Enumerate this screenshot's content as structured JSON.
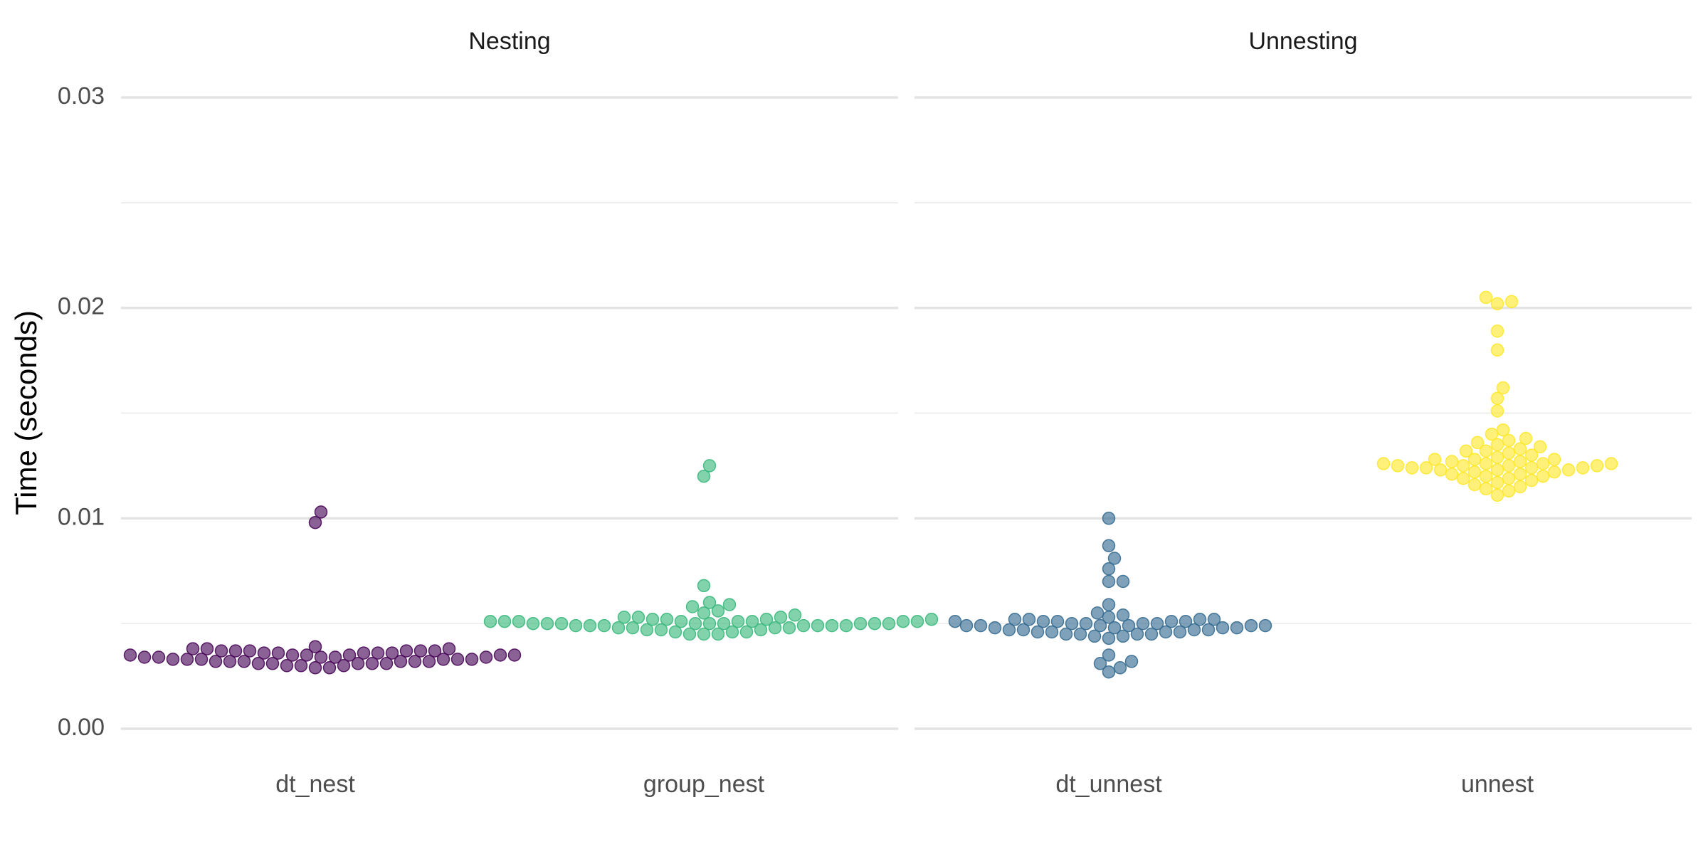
{
  "chart_data": {
    "type": "scatter",
    "subtype": "beeswarm",
    "ylabel": "Time (seconds)",
    "ylim": [
      0,
      0.03
    ],
    "y_ticks": [
      "0.00",
      "0.01",
      "0.02",
      "0.03"
    ],
    "y_tick_values": [
      0,
      0.01,
      0.02,
      0.03
    ],
    "y_minor_values": [
      0.005,
      0.015,
      0.025
    ],
    "grid": true,
    "legend": "none",
    "panels": [
      {
        "title": "Nesting",
        "categories": [
          "dt_nest",
          "group_nest"
        ],
        "series": [
          {
            "name": "dt_nest",
            "color": "#440154",
            "values": [
              0.0037,
              0.0037,
              0.0036,
              0.0036,
              0.0035,
              0.0035,
              0.0035,
              0.0034,
              0.0034,
              0.0034,
              0.0033,
              0.0033,
              0.0033,
              0.0032,
              0.0032,
              0.0032,
              0.0031,
              0.0031,
              0.0031,
              0.003,
              0.003,
              0.003,
              0.0029,
              0.0029,
              0.0037,
              0.0038,
              0.0038,
              0.0039,
              0.0036,
              0.0037,
              0.0031,
              0.0031,
              0.0032,
              0.0032,
              0.0032,
              0.0033,
              0.0033,
              0.0033,
              0.0034,
              0.0034,
              0.0035,
              0.0035,
              0.0035,
              0.0036,
              0.0036,
              0.0037,
              0.0037,
              0.0038,
              0.0098,
              0.0103
            ]
          },
          {
            "name": "group_nest",
            "color": "#35B779",
            "values": [
              0.0053,
              0.0052,
              0.0052,
              0.0051,
              0.0051,
              0.0051,
              0.0051,
              0.0051,
              0.005,
              0.005,
              0.005,
              0.005,
              0.005,
              0.0049,
              0.0049,
              0.0049,
              0.0049,
              0.0048,
              0.0048,
              0.0047,
              0.0047,
              0.0046,
              0.0046,
              0.0045,
              0.0045,
              0.0045,
              0.0046,
              0.0047,
              0.0048,
              0.0048,
              0.0049,
              0.0049,
              0.0049,
              0.005,
              0.005,
              0.005,
              0.005,
              0.0051,
              0.0051,
              0.0051,
              0.0052,
              0.0052,
              0.0053,
              0.0053,
              0.0054,
              0.0055,
              0.0056,
              0.0058,
              0.0059,
              0.006,
              0.0068,
              0.012,
              0.0125
            ]
          }
        ]
      },
      {
        "title": "Unnesting",
        "categories": [
          "dt_unnest",
          "unnest"
        ],
        "series": [
          {
            "name": "dt_unnest",
            "color": "#31688E",
            "values": [
              0.0052,
              0.0052,
              0.0051,
              0.0051,
              0.005,
              0.005,
              0.0049,
              0.0049,
              0.0049,
              0.0048,
              0.0048,
              0.0047,
              0.0047,
              0.0046,
              0.0046,
              0.0045,
              0.0045,
              0.0044,
              0.0044,
              0.0043,
              0.0045,
              0.0045,
              0.0046,
              0.0046,
              0.0047,
              0.0047,
              0.0048,
              0.0048,
              0.0049,
              0.0049,
              0.0049,
              0.005,
              0.005,
              0.0051,
              0.0051,
              0.0052,
              0.0051,
              0.0052,
              0.0053,
              0.0054,
              0.0055,
              0.0059,
              0.007,
              0.007,
              0.0076,
              0.0081,
              0.0087,
              0.01,
              0.0035,
              0.0032,
              0.0031,
              0.0029,
              0.0027
            ]
          },
          {
            "name": "unnest",
            "color": "#FDE725",
            "values": [
              0.0128,
              0.0127,
              0.0126,
              0.0126,
              0.0125,
              0.0125,
              0.0124,
              0.0124,
              0.0123,
              0.0122,
              0.0121,
              0.012,
              0.0119,
              0.0118,
              0.0116,
              0.0114,
              0.0111,
              0.0113,
              0.0115,
              0.0117,
              0.0119,
              0.012,
              0.0121,
              0.0122,
              0.0123,
              0.0123,
              0.0124,
              0.0124,
              0.0125,
              0.0125,
              0.0126,
              0.0126,
              0.0127,
              0.0128,
              0.0128,
              0.0129,
              0.013,
              0.0131,
              0.0132,
              0.0132,
              0.0133,
              0.0134,
              0.0135,
              0.0136,
              0.0137,
              0.0138,
              0.014,
              0.0142,
              0.0151,
              0.0157,
              0.0162,
              0.018,
              0.0189,
              0.0202,
              0.0203,
              0.0205
            ]
          }
        ]
      }
    ]
  }
}
